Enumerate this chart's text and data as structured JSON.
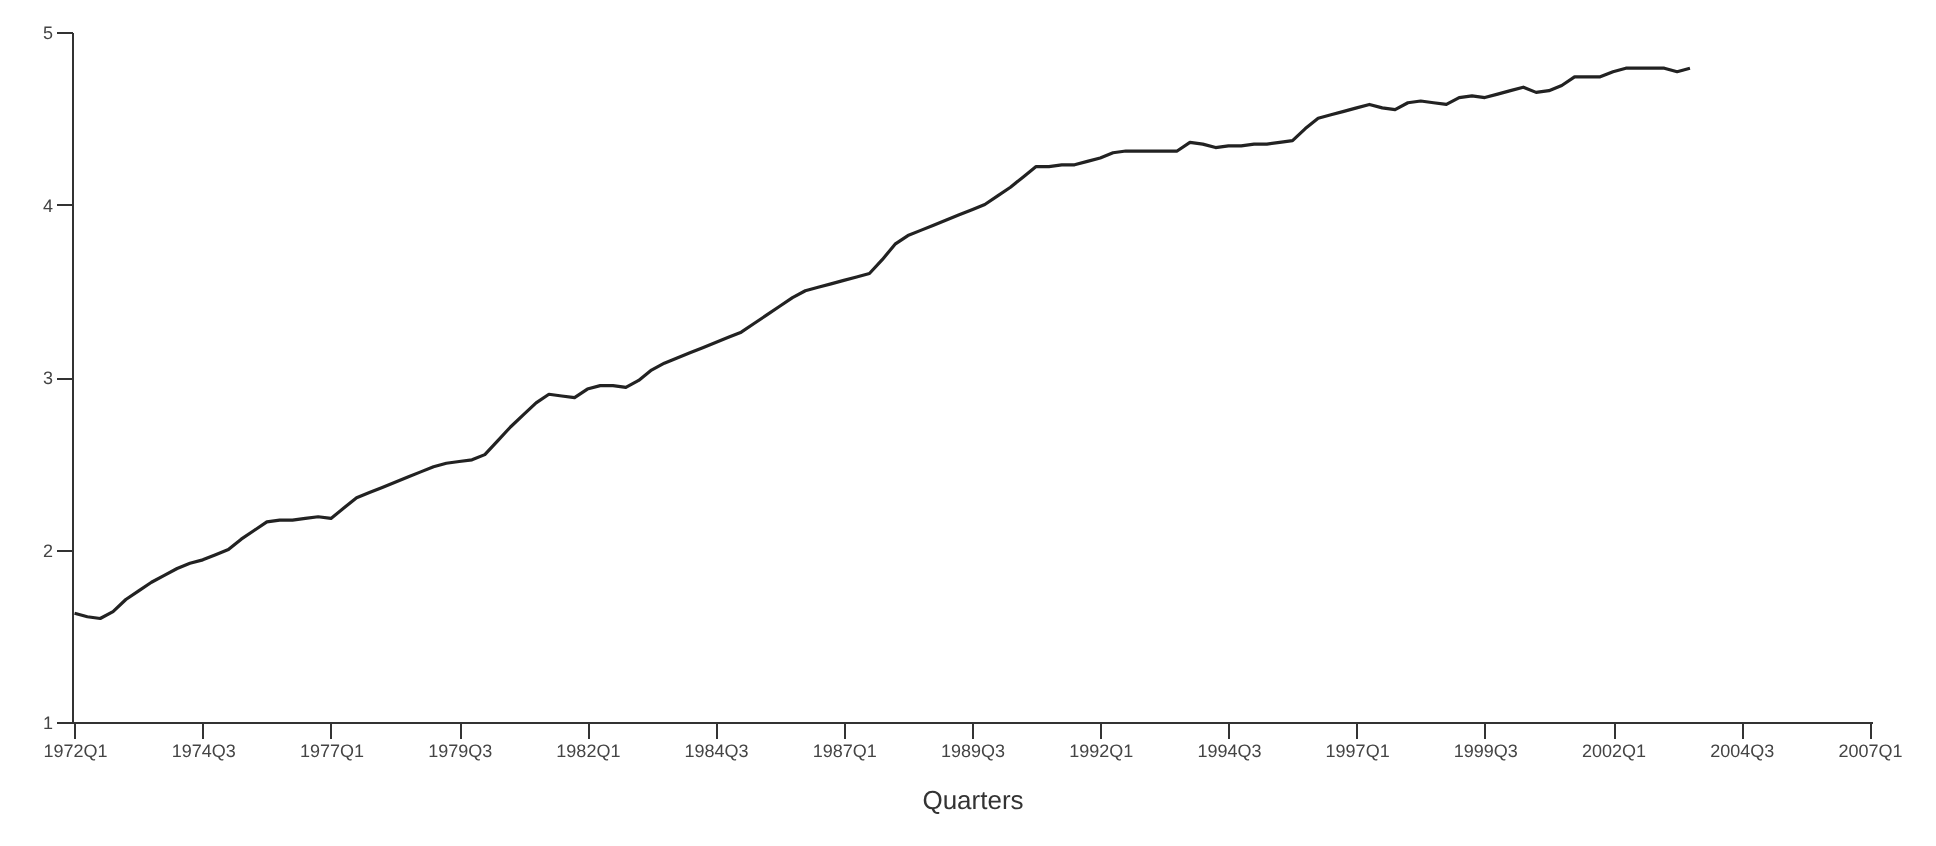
{
  "chart_data": {
    "type": "line",
    "xlabel": "Quarters",
    "categories": [
      "1972Q1",
      null,
      null,
      null,
      null,
      null,
      null,
      null,
      null,
      null,
      "1974Q3",
      null,
      null,
      null,
      null,
      null,
      null,
      null,
      null,
      null,
      "1977Q1",
      null,
      null,
      null,
      null,
      null,
      null,
      null,
      null,
      null,
      "1979Q3",
      null,
      null,
      null,
      null,
      null,
      null,
      null,
      null,
      null,
      "1982Q1",
      null,
      null,
      null,
      null,
      null,
      null,
      null,
      null,
      null,
      "1984Q3",
      null,
      null,
      null,
      null,
      null,
      null,
      null,
      null,
      null,
      "1987Q1",
      null,
      null,
      null,
      null,
      null,
      null,
      null,
      null,
      null,
      "1989Q3",
      null,
      null,
      null,
      null,
      null,
      null,
      null,
      null,
      null,
      "1992Q1",
      null,
      null,
      null,
      null,
      null,
      null,
      null,
      null,
      null,
      "1994Q3",
      null,
      null,
      null,
      null,
      null,
      null,
      null,
      null,
      null,
      "1997Q1",
      null,
      null,
      null,
      null,
      null,
      null,
      null,
      null,
      null,
      "1999Q3",
      null,
      null,
      null,
      null,
      null,
      null,
      null,
      null,
      null,
      "2002Q1",
      null,
      null,
      null,
      null,
      null,
      null,
      null,
      null,
      null,
      "2004Q3",
      null,
      null,
      null,
      null,
      null,
      null,
      null,
      null,
      null,
      "2007Q1"
    ],
    "ylim": [
      1,
      5
    ],
    "yticks": [
      1,
      2,
      3,
      4,
      5
    ],
    "grid": false,
    "marker": "none",
    "line_style": "solid",
    "series": [
      {
        "color": "#222222",
        "values": [
          1.63,
          1.61,
          1.6,
          1.64,
          1.71,
          1.76,
          1.81,
          1.85,
          1.89,
          1.92,
          1.94,
          1.97,
          2.0,
          2.06,
          2.11,
          2.16,
          2.17,
          2.17,
          2.18,
          2.19,
          2.18,
          2.24,
          2.3,
          2.33,
          2.36,
          2.39,
          2.42,
          2.45,
          2.48,
          2.5,
          2.51,
          2.52,
          2.55,
          2.63,
          2.71,
          2.78,
          2.85,
          2.9,
          2.89,
          2.88,
          2.93,
          2.95,
          2.95,
          2.94,
          2.98,
          3.04,
          3.08,
          3.11,
          3.14,
          3.17,
          3.2,
          3.23,
          3.26,
          3.31,
          3.36,
          3.41,
          3.46,
          3.5,
          3.52,
          3.54,
          3.56,
          3.58,
          3.6,
          3.68,
          3.77,
          3.82,
          3.85,
          3.88,
          3.91,
          3.94,
          3.97,
          4.0,
          4.05,
          4.1,
          4.16,
          4.22,
          4.22,
          4.23,
          4.23,
          4.25,
          4.27,
          4.3,
          4.31,
          4.31,
          4.31,
          4.31,
          4.31,
          4.36,
          4.35,
          4.33,
          4.34,
          4.34,
          4.35,
          4.35,
          4.36,
          4.37,
          4.44,
          4.5,
          4.52,
          4.54,
          4.56,
          4.58,
          4.56,
          4.55,
          4.59,
          4.6,
          4.59,
          4.58,
          4.62,
          4.63,
          4.62,
          4.64,
          4.66,
          4.68,
          4.65,
          4.66,
          4.69,
          4.74,
          4.74,
          4.74,
          4.77,
          4.79,
          4.79,
          4.79,
          4.79,
          4.77,
          4.79,
          null,
          null,
          null,
          null,
          null,
          null,
          null,
          null,
          null,
          null,
          null,
          null,
          null,
          null
        ]
      }
    ]
  }
}
